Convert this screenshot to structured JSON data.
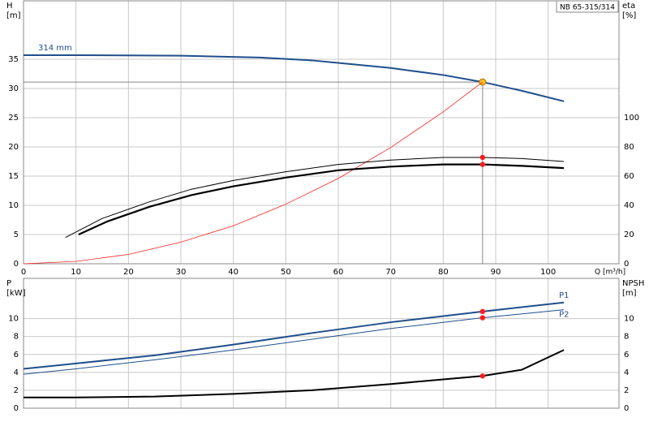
{
  "chart_data": [
    {
      "type": "line",
      "xlabel": "Q [m³/h]",
      "ylabel": "H",
      "yunit": "[m]",
      "y2label": "eta",
      "y2unit": "[%]",
      "legend_box": "NB 65-315/314",
      "xlim": [
        0,
        113.5
      ],
      "xticks": [
        0,
        10,
        20,
        30,
        40,
        50,
        60,
        70,
        80,
        90,
        100
      ],
      "ylim": [
        0,
        45
      ],
      "yticks": [
        0,
        5,
        10,
        15,
        20,
        25,
        30,
        35
      ],
      "y2lim": [
        0,
        180
      ],
      "y2ticks": [
        0,
        20,
        40,
        60,
        80,
        100
      ],
      "grid": true,
      "duty_q": 87.5,
      "duty_h": 31.1,
      "series": [
        {
          "name": "314 mm",
          "label_at": "start",
          "color": "#1f4e8c",
          "width": 2,
          "axis": "y",
          "x": [
            0,
            10.5,
            30,
            45,
            55,
            62,
            70,
            80,
            87.5,
            95,
            103
          ],
          "values": [
            35.7,
            35.7,
            35.6,
            35.3,
            34.8,
            34.2,
            33.5,
            32.3,
            31.1,
            29.6,
            27.8
          ]
        },
        {
          "color": "#ff2020",
          "width": 0.8,
          "axis": "y",
          "x": [
            0,
            10,
            20,
            30,
            40,
            50,
            60,
            70,
            80,
            87.5
          ],
          "values": [
            0,
            0.4,
            1.6,
            3.7,
            6.5,
            10.2,
            14.6,
            19.9,
            26,
            31.1
          ]
        },
        {
          "color": "#000000",
          "width": 1,
          "axis": "y2",
          "x": [
            8,
            15,
            24,
            32,
            40,
            50,
            60,
            70,
            80,
            87.5,
            95,
            103
          ],
          "values": [
            18,
            31,
            42.4,
            51,
            57,
            63,
            68,
            71,
            72.8,
            72.8,
            72,
            70
          ]
        },
        {
          "color": "#000000",
          "width": 2.2,
          "axis": "y2",
          "x": [
            10.5,
            16,
            24,
            32,
            40,
            50,
            60,
            70,
            80,
            87.5,
            95,
            103
          ],
          "values": [
            20,
            29,
            39,
            47,
            53,
            59,
            64,
            66.5,
            68,
            68,
            67,
            65.5
          ]
        }
      ]
    },
    {
      "type": "line",
      "ylabel": "P",
      "yunit": "[kW]",
      "y2label": "NPSH",
      "y2unit": "[m]",
      "xlim": [
        0,
        113.5
      ],
      "xticks": [
        0,
        10,
        20,
        30,
        40,
        50,
        60,
        70,
        80,
        90,
        100
      ],
      "ylim": [
        0,
        14.5
      ],
      "yticks": [
        0,
        2,
        4,
        6,
        8,
        10
      ],
      "y2lim": [
        0,
        14.5
      ],
      "y2ticks": [
        0,
        2,
        4,
        6,
        8,
        10
      ],
      "grid": true,
      "duty_q": 87.5,
      "series": [
        {
          "name": "P1",
          "label_at": "end",
          "color": "#1f4e8c",
          "width": 2,
          "axis": "y",
          "x": [
            0,
            10,
            25,
            40,
            55,
            70,
            87.5,
            103
          ],
          "values": [
            4.4,
            5.0,
            5.9,
            7.1,
            8.4,
            9.6,
            10.8,
            11.8
          ]
        },
        {
          "name": "P2",
          "label_at": "end",
          "color": "#1f4e8c",
          "width": 1,
          "axis": "y",
          "x": [
            0,
            10,
            25,
            40,
            55,
            70,
            87.5,
            103
          ],
          "values": [
            3.8,
            4.4,
            5.4,
            6.5,
            7.7,
            8.9,
            10.1,
            11.0
          ]
        },
        {
          "color": "#000000",
          "width": 2,
          "axis": "y2",
          "x": [
            0,
            10,
            25,
            40,
            55,
            70,
            87.5,
            95,
            103
          ],
          "values": [
            1.2,
            1.2,
            1.3,
            1.6,
            2.0,
            2.7,
            3.6,
            4.3,
            6.5
          ]
        }
      ]
    }
  ]
}
